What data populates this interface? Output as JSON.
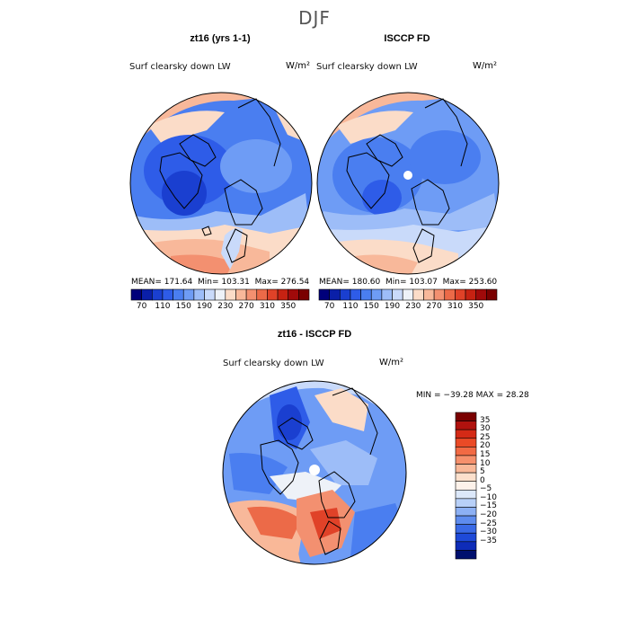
{
  "title": "DJF",
  "panels": [
    {
      "title": "zt16 (yrs 1-1)",
      "variable": "Surf clearsky down LW",
      "units": "W/m²",
      "stats": {
        "mean": "171.64",
        "min": "103.31",
        "max": "276.54"
      }
    },
    {
      "title": "ISCCP FD",
      "variable": "Surf clearsky down LW",
      "units": "W/m²",
      "stats": {
        "mean": "180.60",
        "min": "103.07",
        "max": "253.60"
      }
    },
    {
      "title": "zt16 - ISCCP FD",
      "variable": "Surf clearsky down LW",
      "units": "W/m²",
      "stats": {
        "min": "−39.28",
        "max": "28.28"
      }
    }
  ],
  "labels": {
    "mean": "MEAN=",
    "min": "Min=",
    "max": "Max=",
    "min_eq": "MIN =",
    "max_eq": "MAX ="
  },
  "colorbar_top": {
    "ticks": [
      "70",
      "110",
      "150",
      "190",
      "230",
      "270",
      "310",
      "350"
    ],
    "colors": [
      "#00007a",
      "#0a1fa8",
      "#1a3fd0",
      "#2e5ce8",
      "#4a7ef0",
      "#6e9cf5",
      "#9dbdf8",
      "#c9dafa",
      "#eef2f8",
      "#fbdcc8",
      "#f8b89a",
      "#f39070",
      "#ec6a48",
      "#e04228",
      "#c62212",
      "#a00a0a",
      "#7a0000"
    ]
  },
  "colorbar_diff": {
    "ticks": [
      "35",
      "30",
      "25",
      "20",
      "15",
      "10",
      "5",
      "0",
      "−5",
      "−10",
      "−15",
      "−20",
      "−25",
      "−30",
      "−35"
    ],
    "colors": [
      "#7a0000",
      "#b0120e",
      "#d42a16",
      "#ea4a26",
      "#f26a44",
      "#f6906c",
      "#f9b898",
      "#fce0cc",
      "#fdf2ea",
      "#dce8fa",
      "#b8d0f8",
      "#8cb0f4",
      "#5e8cee",
      "#3a6ae6",
      "#1e4ad8",
      "#0e2cb8",
      "#00106e"
    ]
  },
  "icon_names": [
    "polar-map-icon",
    "land-outline-icon",
    "pole-marker-icon"
  ]
}
